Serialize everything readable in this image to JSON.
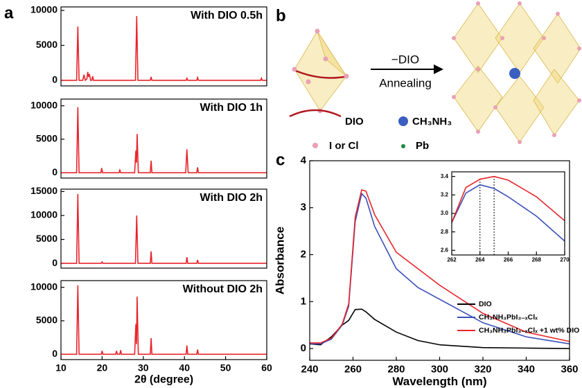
{
  "panel_labels": [
    "a",
    "b",
    "c"
  ],
  "diagram": {
    "arrow_top": "−DIO",
    "arrow_bottom": "Annealing",
    "legend": [
      "DIO",
      "CH₃NH₃",
      "I or Cl",
      "Pb"
    ]
  },
  "chart_data": [
    {
      "type": "line",
      "title": "With DIO 0.5h",
      "xlim": [
        10,
        60
      ],
      "ylim": [
        -800,
        10500
      ],
      "yticks": [
        0,
        5000,
        10000
      ],
      "x": [
        10,
        13.8,
        14.1,
        14.4,
        15.3,
        15.6,
        15.9,
        16.3,
        16.5,
        16.7,
        16.9,
        17.2,
        17.5,
        17.7,
        17.9,
        28.1,
        28.4,
        28.7,
        31.7,
        31.9,
        32.1,
        40.4,
        40.6,
        40.8,
        43,
        43.2,
        43.4,
        58.5,
        58.7,
        58.9,
        60
      ],
      "series": [
        {
          "color": "#e8242a",
          "values": [
            0,
            0,
            7700,
            0,
            0,
            800,
            0,
            200,
            1200,
            500,
            900,
            0,
            0,
            600,
            0,
            0,
            9200,
            0,
            0,
            500,
            0,
            0,
            300,
            0,
            0,
            400,
            0,
            0,
            300,
            0,
            0
          ]
        }
      ]
    },
    {
      "type": "line",
      "title": "With DIO 1h",
      "xlim": [
        10,
        60
      ],
      "ylim": [
        -800,
        11000
      ],
      "yticks": [
        0,
        5000,
        10000
      ],
      "x": [
        10,
        13.8,
        14.1,
        14.4,
        19.7,
        19.9,
        20.1,
        24.1,
        24.3,
        24.5,
        27.9,
        28.2,
        28.35,
        28.5,
        28.8,
        31.7,
        31.9,
        32.1,
        40.3,
        40.6,
        40.9,
        43,
        43.2,
        43.4,
        60
      ],
      "series": [
        {
          "color": "#e8242a",
          "values": [
            0,
            0,
            9800,
            0,
            0,
            700,
            0,
            0,
            400,
            0,
            0,
            3300,
            1500,
            5800,
            0,
            0,
            1800,
            0,
            0,
            3500,
            0,
            0,
            800,
            0,
            0
          ]
        }
      ]
    },
    {
      "type": "line",
      "title": "With DIO 2h",
      "xlim": [
        10,
        60
      ],
      "ylim": [
        -1000,
        15500
      ],
      "yticks": [
        0,
        5000,
        10000,
        15000
      ],
      "x": [
        10,
        13.8,
        14.1,
        14.4,
        19.8,
        20,
        20.2,
        28.1,
        28.4,
        28.7,
        31.7,
        31.9,
        32.1,
        40.4,
        40.6,
        40.8,
        43,
        43.2,
        43.4,
        60
      ],
      "series": [
        {
          "color": "#e8242a",
          "values": [
            0,
            0,
            14500,
            0,
            0,
            300,
            0,
            0,
            10000,
            0,
            0,
            2500,
            0,
            0,
            1300,
            0,
            0,
            700,
            0,
            0
          ]
        }
      ]
    },
    {
      "type": "line",
      "title": "Without DIO 2h",
      "xlabel": "2θ (degree)",
      "xlim": [
        10,
        60
      ],
      "xticks": [
        10,
        20,
        30,
        40,
        50,
        60
      ],
      "ylim": [
        -800,
        11000
      ],
      "yticks": [
        0,
        5000,
        10000
      ],
      "x": [
        10,
        13.8,
        14.1,
        14.4,
        19.8,
        20,
        20.2,
        23.3,
        23.5,
        23.7,
        24.3,
        24.5,
        24.7,
        27.9,
        28.2,
        28.35,
        28.5,
        28.8,
        31.7,
        31.9,
        32.1,
        40.4,
        40.6,
        40.8,
        43,
        43.2,
        43.4,
        60
      ],
      "series": [
        {
          "color": "#e8242a",
          "values": [
            0,
            0,
            10300,
            0,
            0,
            500,
            0,
            0,
            500,
            0,
            0,
            600,
            0,
            0,
            4500,
            1500,
            8600,
            0,
            0,
            2400,
            0,
            0,
            1300,
            0,
            0,
            700,
            0,
            0
          ]
        }
      ]
    },
    {
      "type": "line",
      "xlabel": "Wavelength (nm)",
      "ylabel": "Absorbance",
      "xlim": [
        240,
        360
      ],
      "xticks": [
        240,
        260,
        280,
        300,
        320,
        340,
        360
      ],
      "ylim": [
        -0.25,
        4
      ],
      "yticks": [
        0,
        1,
        2,
        3,
        4
      ],
      "legend": "lower right",
      "x": [
        240,
        245,
        250,
        255,
        258,
        261,
        264,
        266,
        270,
        280,
        290,
        300,
        320,
        340,
        360
      ],
      "series": [
        {
          "name": "DIO",
          "color": "#000000",
          "values": [
            0.1,
            0.08,
            0.25,
            0.5,
            0.6,
            0.83,
            0.84,
            0.78,
            0.62,
            0.35,
            0.17,
            0.08,
            0.02,
            0.01,
            0.0
          ]
        },
        {
          "name": "CH₃NH₃PbI₃₋ₓClₓ",
          "color": "#3b4fb8",
          "values": [
            0.1,
            0.1,
            0.2,
            0.5,
            0.9,
            2.7,
            3.3,
            3.2,
            2.6,
            1.7,
            1.3,
            1.05,
            0.55,
            0.25,
            0.1
          ]
        },
        {
          "name": "CH₃NH₃PbI₃₋ₓClₓ +1 wt% DIO",
          "color": "#e8242a",
          "values": [
            0.12,
            0.12,
            0.22,
            0.52,
            0.95,
            2.8,
            3.38,
            3.35,
            2.85,
            2.05,
            1.7,
            1.35,
            0.75,
            0.35,
            0.15
          ]
        }
      ]
    },
    {
      "type": "line",
      "xlim": [
        262,
        270
      ],
      "xticks": [
        262,
        264,
        266,
        268,
        270
      ],
      "ylim": [
        2.55,
        3.45
      ],
      "yticks": [
        2.6,
        2.8,
        {
          "value": 3,
          "label": "3.0"
        },
        3.2,
        3.4
      ],
      "vlines": [
        264,
        265
      ],
      "x": [
        262,
        263,
        264,
        265,
        266,
        268,
        270
      ],
      "series": [
        {
          "color": "#3b4fb8",
          "values": [
            2.9,
            3.22,
            3.31,
            3.27,
            3.18,
            2.97,
            2.7
          ]
        },
        {
          "color": "#e8242a",
          "values": [
            2.9,
            3.28,
            3.37,
            3.4,
            3.36,
            3.18,
            2.92
          ]
        }
      ]
    }
  ]
}
